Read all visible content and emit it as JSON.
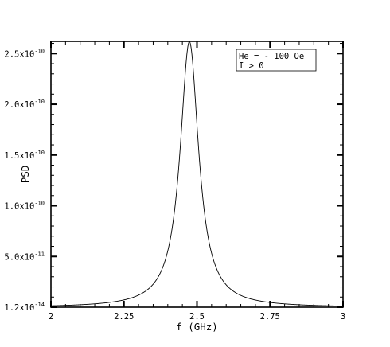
{
  "chart_data": {
    "type": "line",
    "xlabel": "f (GHz)",
    "ylabel": "PSD",
    "xlim": [
      2.0,
      3.0
    ],
    "ylim": [
      1.2e-14,
      2.62e-10
    ],
    "x_ticks": [
      {
        "value": 2.0,
        "label": "2"
      },
      {
        "value": 2.25,
        "label": "2.25"
      },
      {
        "value": 2.5,
        "label": "2.5"
      },
      {
        "value": 2.75,
        "label": "2.75"
      },
      {
        "value": 3.0,
        "label": "3"
      }
    ],
    "y_ticks": [
      {
        "value": 1.2e-14,
        "mant": "1.2x10",
        "exp": "-14"
      },
      {
        "value": 5e-11,
        "mant": "5.0x10",
        "exp": "-11"
      },
      {
        "value": 1e-10,
        "mant": "1.0x10",
        "exp": "-10"
      },
      {
        "value": 1.5e-10,
        "mant": "1.5x10",
        "exp": "-10"
      },
      {
        "value": 2e-10,
        "mant": "2.0x10",
        "exp": "-10"
      },
      {
        "value": 2.5e-10,
        "mant": "2.5x10",
        "exp": "-10"
      }
    ],
    "legend": [
      "He = - 100 Oe",
      "I > 0"
    ],
    "legend_position": "top-right",
    "series": [
      {
        "x": [
          2.0,
          2.05,
          2.1,
          2.15,
          2.2,
          2.25,
          2.3,
          2.35,
          2.38,
          2.4,
          2.42,
          2.44,
          2.45,
          2.46,
          2.47,
          2.475,
          2.48,
          2.49,
          2.5,
          2.51,
          2.52,
          2.54,
          2.56,
          2.6,
          2.65,
          2.7,
          2.75,
          2.8,
          2.85,
          2.9,
          2.95,
          3.0
        ],
        "y": [
          4.2e-12,
          5.4e-12,
          7.2e-12,
          1e-11,
          1.5e-11,
          2.4e-11,
          4.1e-11,
          7.6e-11,
          1.07e-10,
          1.34e-10,
          1.69e-10,
          2.12e-10,
          2.33e-10,
          2.52e-10,
          2.62e-10,
          2.63e-10,
          2.6e-10,
          2.39e-10,
          2.05e-10,
          1.69e-10,
          1.37e-10,
          9.1e-11,
          6.3e-11,
          3.4e-11,
          1.9e-11,
          1.2e-11,
          8.3e-12,
          6.1e-12,
          4.6e-12,
          3.6e-12,
          2.9e-12,
          2.4e-12
        ]
      }
    ]
  }
}
